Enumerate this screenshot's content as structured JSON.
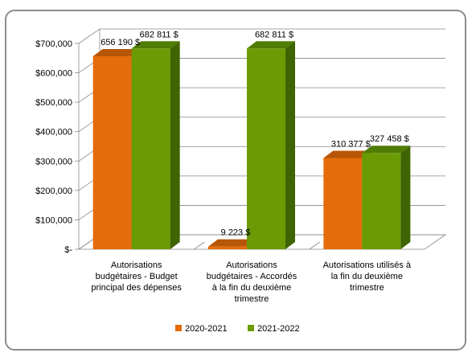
{
  "chart_data": {
    "type": "bar",
    "style": "3d-clustered",
    "categories": [
      [
        "Autorisations",
        "budgétaires - Budget",
        "principal des dépenses"
      ],
      [
        "Autorisations",
        "budgétaires - Accordés",
        "à la fin du deuxième",
        "trimestre"
      ],
      [
        "Autorisations utilisés à",
        "la fin du deuxième",
        "trimestre"
      ]
    ],
    "series": [
      {
        "name": "2020-2021",
        "color": "#E46C0A",
        "top_color": "#B85608",
        "side_color": "#A24B06",
        "values": [
          656190,
          9223,
          310377
        ],
        "labels": [
          "656 190 $",
          "9 223 $",
          "310 377 $"
        ]
      },
      {
        "name": "2021-2022",
        "color": "#6A9B05",
        "top_color": "#4F7D03",
        "side_color": "#3F6402",
        "values": [
          682811,
          682811,
          327458
        ],
        "labels": [
          "682 811 $",
          "682 811 $",
          "327 458 $"
        ]
      }
    ],
    "y_ticks": [
      {
        "value": 0,
        "label": "$-"
      },
      {
        "value": 100000,
        "label": "$100,000"
      },
      {
        "value": 200000,
        "label": "$200,000"
      },
      {
        "value": 300000,
        "label": "$300,000"
      },
      {
        "value": 400000,
        "label": "$400,000"
      },
      {
        "value": 500000,
        "label": "$500,000"
      },
      {
        "value": 600000,
        "label": "$600,000"
      },
      {
        "value": 700000,
        "label": "$700,000"
      }
    ],
    "ylim": [
      0,
      700000
    ],
    "grid": true,
    "legend": "bottom"
  }
}
